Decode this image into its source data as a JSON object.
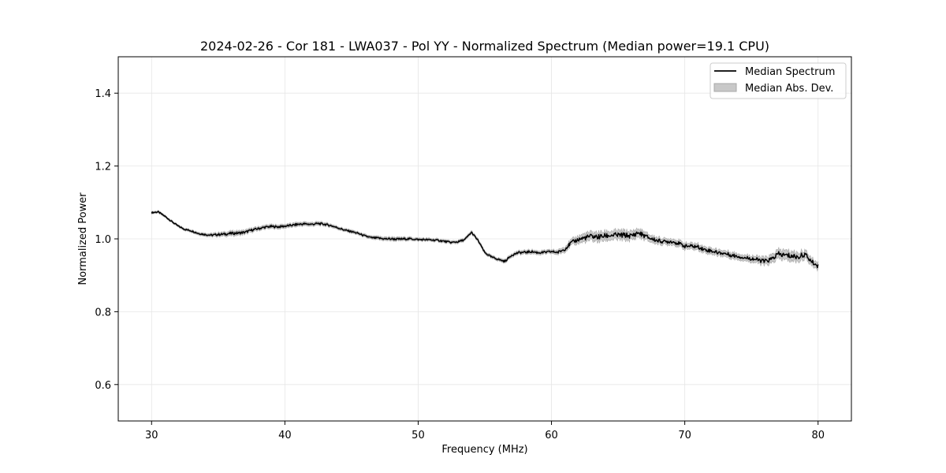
{
  "chart_data": {
    "type": "line",
    "title": "2024-02-26 - Cor 181 - LWA037 - Pol YY - Normalized Spectrum (Median power=19.1 CPU)",
    "xlabel": "Frequency (MHz)",
    "ylabel": "Normalized Power",
    "xlim": [
      27.5,
      82.5
    ],
    "ylim": [
      0.5,
      1.5
    ],
    "xticks": [
      30,
      40,
      50,
      60,
      70,
      80
    ],
    "yticks": [
      0.6,
      0.8,
      1.0,
      1.2,
      1.4
    ],
    "xtick_labels": [
      "30",
      "40",
      "50",
      "60",
      "70",
      "80"
    ],
    "ytick_labels": [
      "0.6",
      "0.8",
      "1.0",
      "1.2",
      "1.4"
    ],
    "grid": true,
    "legend_position": "top-right",
    "series": [
      {
        "name": "Median Spectrum",
        "color": "#000000",
        "x": [
          30.0,
          30.5,
          31.0,
          31.5,
          32.0,
          32.5,
          33.0,
          33.5,
          34.0,
          34.5,
          35.0,
          35.5,
          36.0,
          36.5,
          37.0,
          37.5,
          38.0,
          38.5,
          39.0,
          39.5,
          40.0,
          40.5,
          41.0,
          41.5,
          42.0,
          42.5,
          43.0,
          43.5,
          44.0,
          44.5,
          45.0,
          45.5,
          46.0,
          46.5,
          47.0,
          47.5,
          48.0,
          48.5,
          49.0,
          49.5,
          50.0,
          50.5,
          51.0,
          51.5,
          52.0,
          52.5,
          53.0,
          53.5,
          54.0,
          54.5,
          55.0,
          55.5,
          56.0,
          56.5,
          57.0,
          57.5,
          58.0,
          58.5,
          59.0,
          59.5,
          60.0,
          60.5,
          61.0,
          61.5,
          62.0,
          62.5,
          63.0,
          63.5,
          64.0,
          64.5,
          65.0,
          65.5,
          66.0,
          66.5,
          67.0,
          67.5,
          68.0,
          68.5,
          69.0,
          69.5,
          70.0,
          70.5,
          71.0,
          71.5,
          72.0,
          72.5,
          73.0,
          73.5,
          74.0,
          74.5,
          75.0,
          75.5,
          76.0,
          76.5,
          77.0,
          77.5,
          78.0,
          78.5,
          79.0,
          79.5,
          80.0
        ],
        "values": [
          1.072,
          1.074,
          1.062,
          1.048,
          1.035,
          1.026,
          1.022,
          1.015,
          1.012,
          1.01,
          1.012,
          1.013,
          1.015,
          1.016,
          1.018,
          1.024,
          1.028,
          1.032,
          1.034,
          1.033,
          1.035,
          1.037,
          1.04,
          1.041,
          1.04,
          1.042,
          1.04,
          1.036,
          1.03,
          1.024,
          1.02,
          1.015,
          1.008,
          1.003,
          1.002,
          1.0,
          1.0,
          0.999,
          1.0,
          1.0,
          0.998,
          0.998,
          0.997,
          0.996,
          0.993,
          0.99,
          0.992,
          0.998,
          1.018,
          0.995,
          0.962,
          0.95,
          0.944,
          0.938,
          0.955,
          0.962,
          0.963,
          0.965,
          0.962,
          0.963,
          0.965,
          0.963,
          0.972,
          0.99,
          0.998,
          1.003,
          1.007,
          1.005,
          1.008,
          1.01,
          1.01,
          1.01,
          1.008,
          1.017,
          1.008,
          1.0,
          0.995,
          0.992,
          0.993,
          0.988,
          0.98,
          0.98,
          0.978,
          0.97,
          0.967,
          0.962,
          0.96,
          0.955,
          0.952,
          0.948,
          0.946,
          0.942,
          0.938,
          0.944,
          0.958,
          0.955,
          0.953,
          0.95,
          0.958,
          0.938,
          0.925
        ]
      },
      {
        "name": "Median Abs. Dev.",
        "fill": "#c8c8c8",
        "stroke": "#a8a8a8",
        "x": [
          30.0,
          32.0,
          34.0,
          36.0,
          38.0,
          40.0,
          42.0,
          44.0,
          46.0,
          48.0,
          50.0,
          52.0,
          54.0,
          56.0,
          58.0,
          60.0,
          61.5,
          62.5,
          63.5,
          64.5,
          65.5,
          66.5,
          67.5,
          68.5,
          69.5,
          70.5,
          71.5,
          72.5,
          73.5,
          74.5,
          75.5,
          76.5,
          77.5,
          78.5,
          79.5,
          80.0
        ],
        "deviation": [
          0.003,
          0.003,
          0.004,
          0.006,
          0.005,
          0.005,
          0.005,
          0.004,
          0.004,
          0.005,
          0.004,
          0.004,
          0.004,
          0.004,
          0.005,
          0.005,
          0.008,
          0.011,
          0.012,
          0.012,
          0.012,
          0.011,
          0.009,
          0.008,
          0.008,
          0.008,
          0.008,
          0.008,
          0.008,
          0.008,
          0.009,
          0.011,
          0.013,
          0.012,
          0.01,
          0.009
        ]
      }
    ]
  }
}
